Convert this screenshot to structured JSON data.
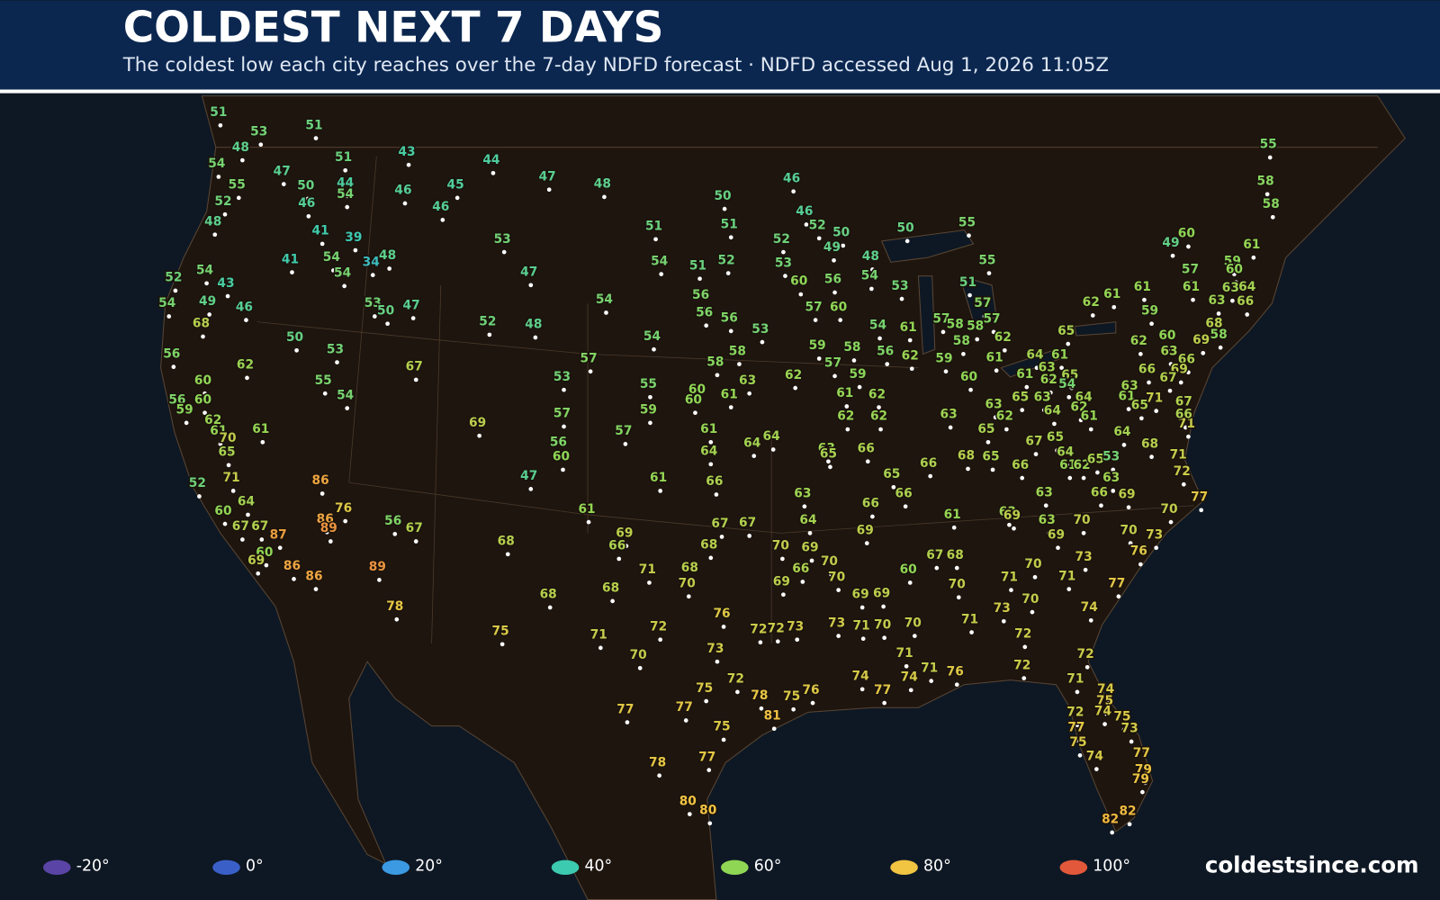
{
  "header": {
    "title": "COLDEST NEXT 7 DAYS",
    "subtitle": "The coldest low each city reaches over the 7-day NDFD forecast  · NDFD accessed Aug 1, 2026 11:05Z"
  },
  "map": {
    "lows": [
      51,
      53,
      48,
      54,
      55,
      52,
      48,
      51,
      51,
      47,
      50,
      44,
      54,
      46,
      41,
      39,
      43,
      46,
      45,
      46,
      44,
      47,
      48,
      52,
      54,
      43,
      54,
      49,
      46,
      41,
      54,
      34,
      48,
      54,
      53,
      50,
      47,
      68,
      56,
      50,
      53,
      62,
      60,
      55,
      54,
      67,
      56,
      60,
      59,
      62,
      61,
      70,
      65,
      61,
      52,
      71,
      64,
      60,
      67,
      67,
      87,
      60,
      69,
      86,
      76,
      86,
      89,
      86,
      86,
      89,
      78,
      56,
      67,
      53,
      47,
      52,
      48,
      53,
      57,
      56,
      60,
      47,
      69,
      68,
      68,
      75,
      61,
      50,
      51,
      51,
      54,
      51,
      52,
      54,
      56,
      56,
      56,
      53,
      54,
      57,
      58,
      58,
      63,
      55,
      60,
      60,
      61,
      59,
      57,
      61,
      64,
      64,
      64,
      61,
      66,
      67,
      67,
      68,
      69,
      66,
      71,
      68,
      68,
      70,
      71,
      72,
      70,
      76,
      73,
      72,
      72,
      73,
      72,
      75,
      77,
      77,
      75,
      78,
      81,
      75,
      76,
      77,
      78,
      80,
      80,
      46,
      46,
      52,
      50,
      49,
      52,
      48,
      53,
      60,
      56,
      54,
      53,
      57,
      60,
      54,
      61,
      59,
      58,
      56,
      62,
      57,
      59,
      62,
      61,
      62,
      62,
      62,
      50,
      55,
      55,
      51,
      57,
      57,
      58,
      58,
      57,
      58,
      62,
      59,
      61,
      60,
      63,
      63,
      62,
      65,
      68,
      65,
      66,
      63,
      65,
      66,
      65,
      66,
      66,
      63,
      64,
      69,
      61,
      70,
      69,
      70,
      66,
      70,
      69,
      69,
      69,
      60,
      67,
      68,
      70,
      71,
      73,
      70,
      71,
      70,
      73,
      71,
      70,
      70,
      71,
      71,
      76,
      74,
      77,
      74,
      72,
      72,
      61,
      64,
      61,
      63,
      62,
      65,
      65,
      63,
      54,
      64,
      64,
      62,
      61,
      67,
      65,
      64,
      61,
      62,
      65,
      53,
      66,
      63,
      66,
      69,
      63,
      63,
      69,
      63,
      69,
      70,
      73,
      71,
      70,
      76,
      73,
      77,
      74,
      70,
      77,
      72,
      71,
      68,
      64,
      61,
      65,
      71,
      63,
      66,
      62,
      60,
      63,
      66,
      69,
      67,
      67,
      71,
      66,
      69,
      68,
      58,
      59,
      62,
      61,
      61,
      65,
      57,
      61,
      63,
      63,
      64,
      66,
      59,
      60,
      61,
      49,
      60,
      55,
      58,
      58,
      72,
      71,
      74,
      75,
      72,
      74,
      75,
      73,
      77,
      75,
      77,
      74,
      79,
      79,
      82,
      82
    ],
    "legend": [
      {
        "value": -20,
        "label": "-20°",
        "color": "#5a44a6"
      },
      {
        "value": 0,
        "label": "0°",
        "color": "#3a60c8"
      },
      {
        "value": 20,
        "label": "20°",
        "color": "#3b9ae2"
      },
      {
        "value": 40,
        "label": "40°",
        "color": "#3ccab0"
      },
      {
        "value": 60,
        "label": "60°",
        "color": "#8fd655"
      },
      {
        "value": 80,
        "label": "80°",
        "color": "#f1c442"
      },
      {
        "value": 100,
        "label": "100°",
        "color": "#e2583a"
      }
    ]
  },
  "footer": {
    "watermark": "coldestsince.com"
  }
}
